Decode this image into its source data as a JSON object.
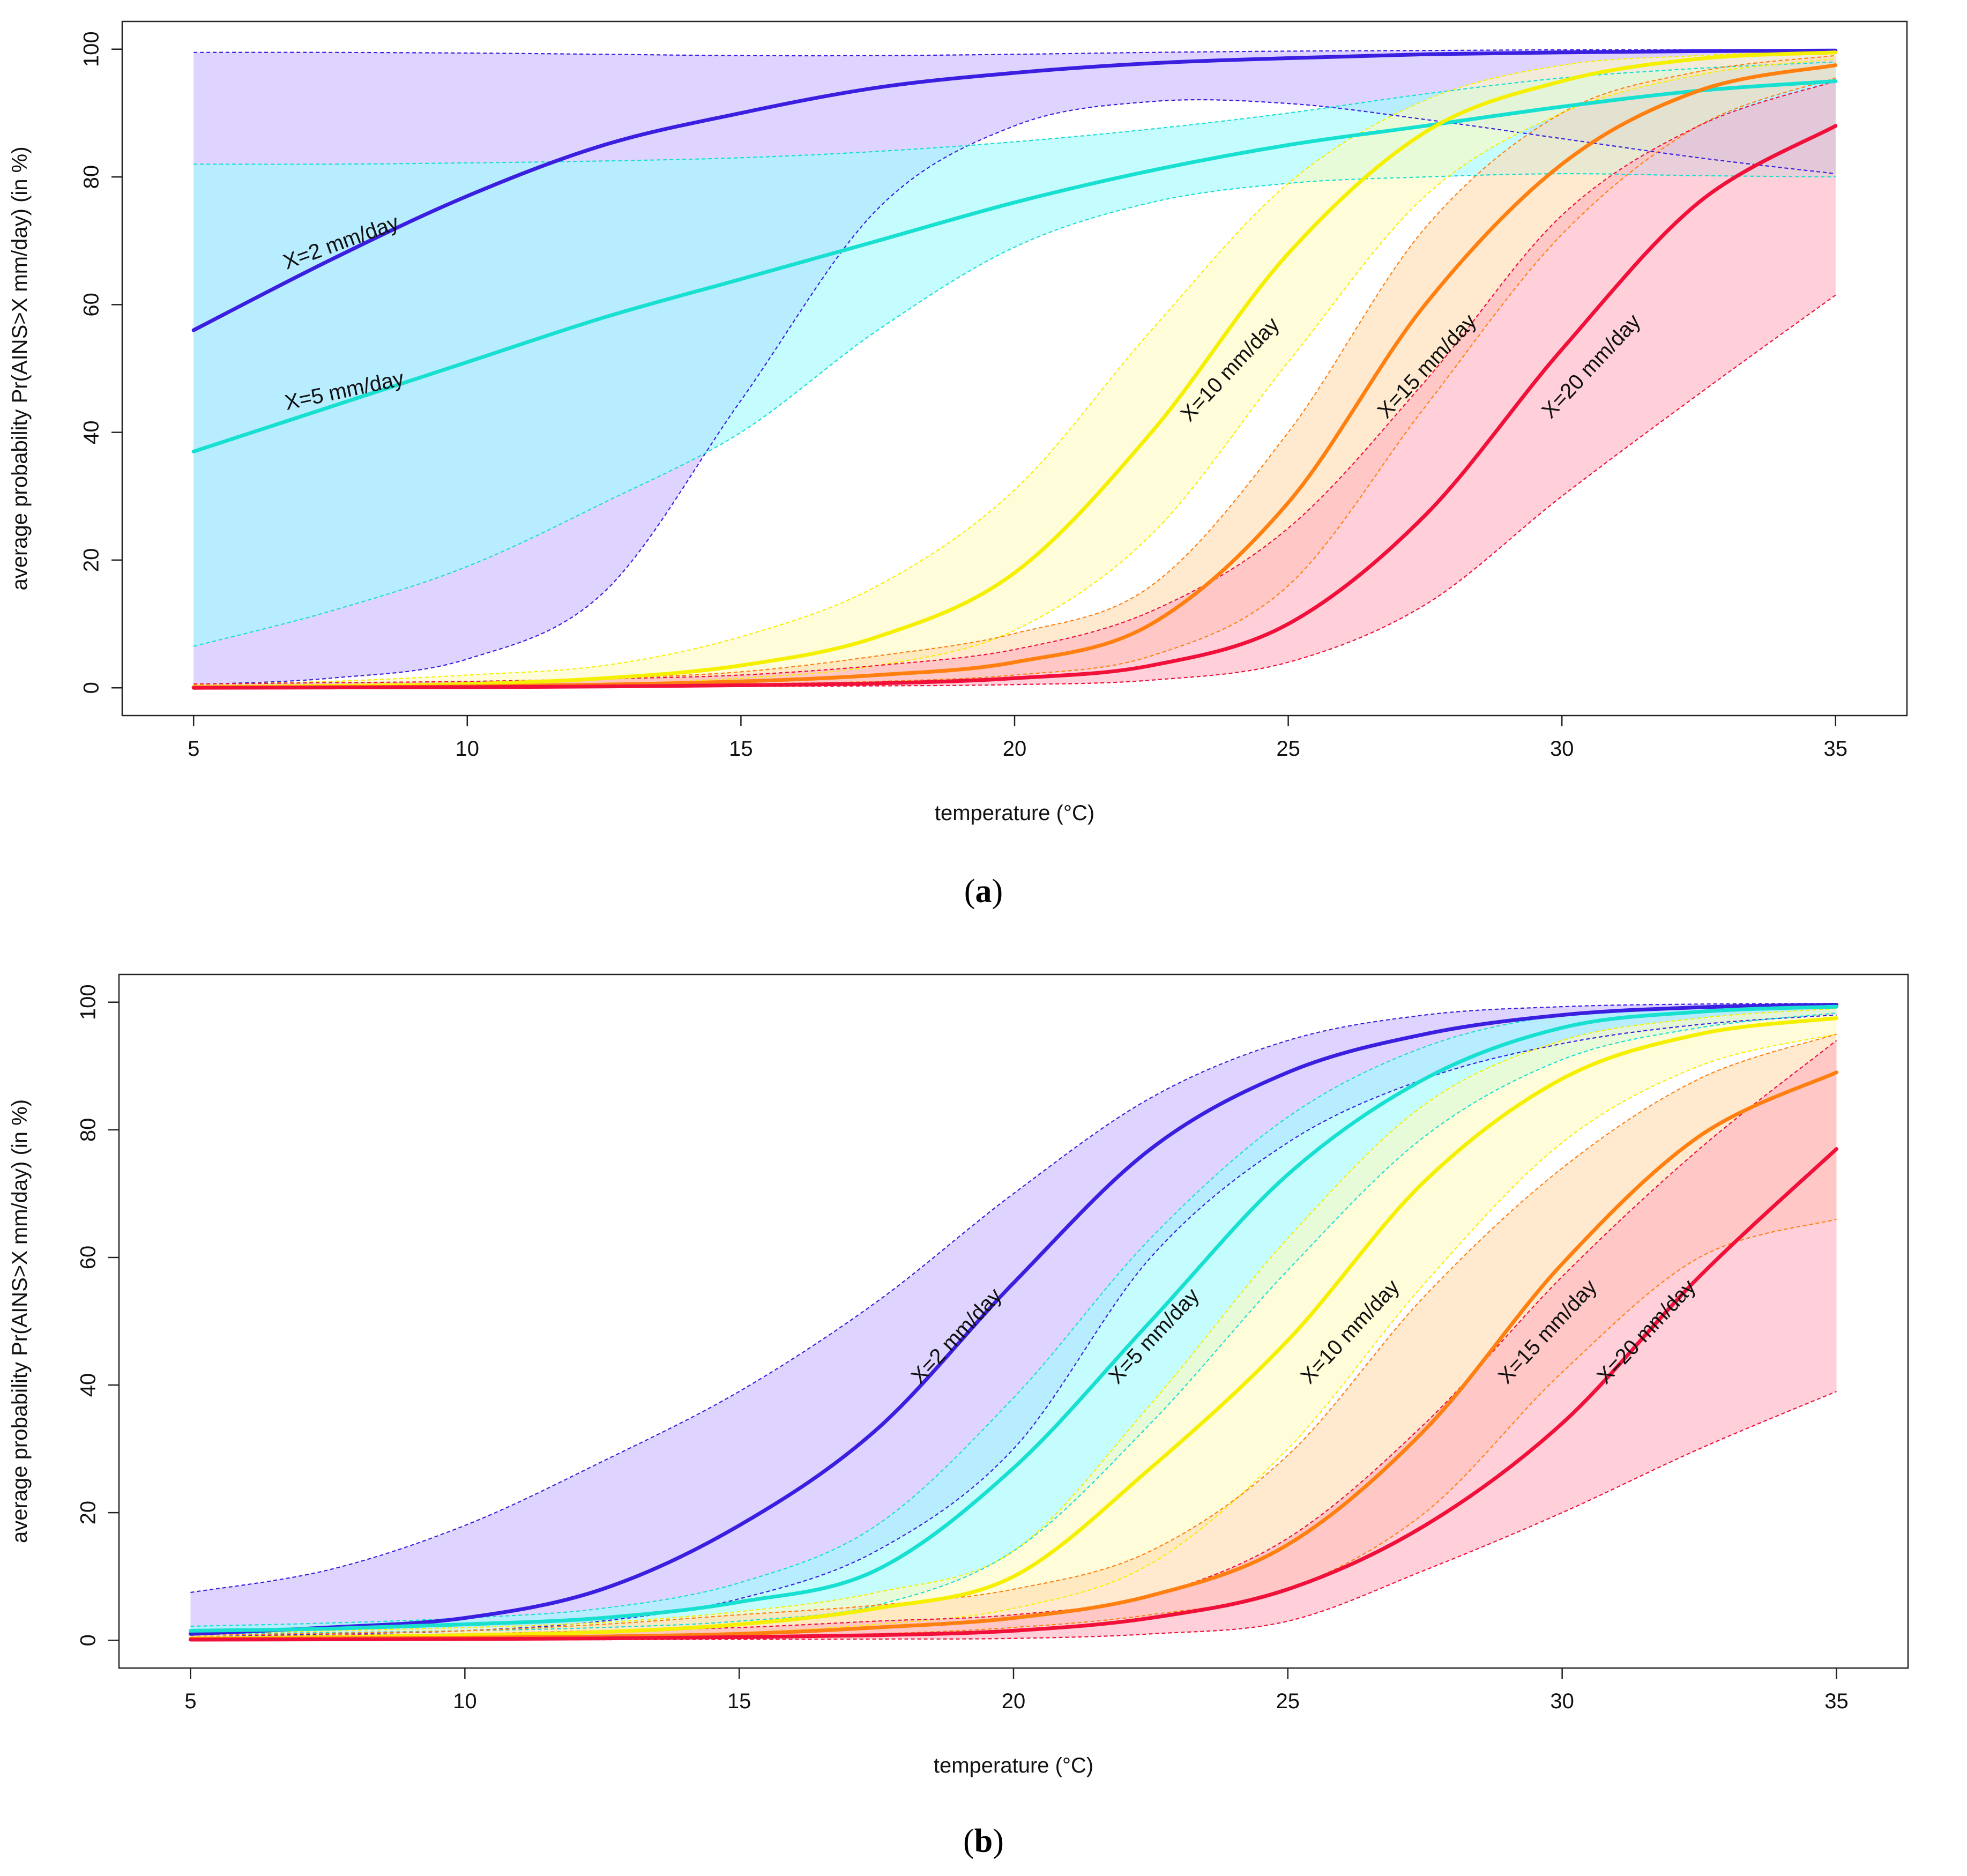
{
  "chart_data": [
    {
      "type": "line",
      "panel_label": "a",
      "xlabel": "temperature (°C)",
      "ylabel": "average probability Pr(AINS>X mm/day) (in %)",
      "xlim": [
        5,
        35
      ],
      "ylim": [
        0,
        100
      ],
      "x_ticks": [
        "5",
        "10",
        "15",
        "20",
        "25",
        "30",
        "35"
      ],
      "y_ticks": [
        "0",
        "20",
        "40",
        "60",
        "80",
        "100"
      ],
      "x": [
        5,
        7.5,
        10,
        12.5,
        15,
        17.5,
        20,
        22.5,
        25,
        27.5,
        30,
        32.5,
        35
      ],
      "series": [
        {
          "name": "X=2 mm/day",
          "color": "#3a1fe0",
          "band_color": "#c9b8ff",
          "values": [
            56,
            67,
            77,
            85,
            90,
            94,
            96.3,
            97.8,
            98.6,
            99.2,
            99.5,
            99.7,
            99.8
          ],
          "lower": [
            0.5,
            1.5,
            4.5,
            15,
            45,
            75,
            88,
            91.8,
            91.5,
            89,
            86,
            83,
            80.5
          ],
          "upper": [
            99.5,
            99.5,
            99.4,
            99.2,
            99,
            99,
            99.2,
            99.5,
            99.7,
            99.8,
            99.9,
            99.9,
            99.9
          ]
        },
        {
          "name": "X=5 mm/day",
          "color": "#18e0d0",
          "band_color": "#9ffbff",
          "values": [
            37,
            44,
            51,
            58,
            64,
            70,
            76,
            81,
            85,
            88,
            91,
            93.5,
            95
          ],
          "lower": [
            6.5,
            12,
            19,
            29,
            40,
            56,
            69,
            76,
            79,
            80,
            80.5,
            80.2,
            80
          ],
          "upper": [
            82,
            82,
            82.2,
            82.5,
            83,
            84,
            85.5,
            87.5,
            90,
            93,
            95.5,
            97,
            98
          ]
        },
        {
          "name": "X=10 mm/day",
          "color": "#f5f000",
          "band_color": "#fffac0",
          "values": [
            0.1,
            0.3,
            0.6,
            1.5,
            3.5,
            8,
            18,
            40,
            68,
            87,
            95,
            98.5,
            99.5
          ],
          "lower": [
            0,
            0.1,
            0.3,
            0.6,
            1.5,
            3.5,
            9,
            24,
            51,
            77,
            90,
            96,
            98.5
          ],
          "upper": [
            0.5,
            1,
            2,
            3.5,
            8,
            16,
            31,
            56,
            79,
            92,
            97.5,
            99,
            99.8
          ]
        },
        {
          "name": "X=15 mm/day",
          "color": "#ff8010",
          "band_color": "#ffdcb0",
          "values": [
            0.05,
            0.1,
            0.2,
            0.5,
            1,
            2,
            4,
            10,
            29,
            60,
            82,
            93.5,
            97.5
          ],
          "lower": [
            0,
            0.05,
            0.1,
            0.3,
            0.6,
            1,
            2,
            5,
            16,
            44,
            71,
            88,
            95.5
          ],
          "upper": [
            0.3,
            0.5,
            0.8,
            1.5,
            2.5,
            5,
            8.5,
            16,
            40,
            72,
            90,
            96.5,
            99
          ]
        },
        {
          "name": "X=20 mm/day",
          "color": "#f0103a",
          "band_color": "#ffb0bf",
          "values": [
            0,
            0.05,
            0.1,
            0.2,
            0.4,
            0.7,
            1.5,
            3.5,
            10,
            27,
            53,
            76,
            88
          ],
          "lower": [
            0,
            0,
            0.05,
            0.1,
            0.2,
            0.3,
            0.5,
            1.2,
            4,
            13,
            30,
            46,
            61.5
          ],
          "upper": [
            0.6,
            0.8,
            1,
            1.4,
            2,
            3.5,
            6,
            12,
            25,
            48,
            74,
            88,
            95
          ]
        }
      ]
    },
    {
      "type": "line",
      "panel_label": "b",
      "xlabel": "temperature (°C)",
      "ylabel": "average probability Pr(AINS>X mm/day) (in %)",
      "xlim": [
        5,
        35
      ],
      "ylim": [
        0,
        100
      ],
      "x_ticks": [
        "5",
        "10",
        "15",
        "20",
        "25",
        "30",
        "35"
      ],
      "y_ticks": [
        "0",
        "20",
        "40",
        "60",
        "80",
        "100"
      ],
      "x": [
        5,
        7.5,
        10,
        12.5,
        15,
        17.5,
        20,
        22.5,
        25,
        27.5,
        30,
        32.5,
        35
      ],
      "series": [
        {
          "name": "X=2 mm/day",
          "color": "#3a1fe0",
          "band_color": "#c9b8ff",
          "values": [
            1,
            2,
            3.5,
            8,
            18,
            33,
            56,
            77,
            89,
            95,
            98,
            99.2,
            99.6
          ],
          "lower": [
            0.5,
            1,
            1.5,
            3,
            6.5,
            14,
            30,
            60,
            78,
            88,
            93.5,
            96.5,
            98
          ],
          "upper": [
            7.5,
            11,
            18,
            28,
            39,
            53,
            70,
            85,
            94,
            98,
            99.3,
            99.7,
            99.8
          ]
        },
        {
          "name": "X=5 mm/day",
          "color": "#18e0d0",
          "band_color": "#9ffbff",
          "values": [
            1.5,
            1.8,
            2.5,
            3.5,
            6,
            11,
            27,
            50,
            73,
            88,
            96,
            98.5,
            99.3
          ],
          "lower": [
            1,
            1.2,
            1.5,
            2,
            3,
            5.5,
            14,
            34,
            58,
            79,
            91,
            96,
            98.3
          ],
          "upper": [
            2.2,
            2.7,
            3.5,
            5,
            9,
            18,
            38,
            63,
            82,
            93,
            98,
            99.2,
            99.6
          ]
        },
        {
          "name": "X=10 mm/day",
          "color": "#f5f000",
          "band_color": "#fffac0",
          "values": [
            0.3,
            0.5,
            0.8,
            1.3,
            2.5,
            5,
            10,
            27,
            47,
            72,
            88,
            95,
            97.5
          ],
          "lower": [
            0.1,
            0.2,
            0.4,
            0.7,
            1.2,
            2.5,
            5,
            12,
            30,
            56,
            78,
            90,
            95
          ],
          "upper": [
            1,
            1.5,
            2,
            2.8,
            4.5,
            7.5,
            14,
            37,
            63,
            84,
            94,
            97.5,
            99
          ]
        },
        {
          "name": "X=15 mm/day",
          "color": "#ff8010",
          "band_color": "#ffdcb0",
          "values": [
            0.2,
            0.3,
            0.4,
            0.6,
            1,
            2,
            3.5,
            7,
            15,
            33,
            59,
            79,
            89
          ],
          "lower": [
            0.1,
            0.1,
            0.2,
            0.3,
            0.5,
            1,
            2,
            4,
            8,
            20,
            42,
            60,
            66
          ],
          "upper": [
            0.8,
            1.1,
            1.5,
            2.5,
            4,
            5.5,
            8,
            14,
            29,
            54,
            74,
            88,
            95
          ]
        },
        {
          "name": "X=20 mm/day",
          "color": "#f0103a",
          "band_color": "#ffb0bf",
          "values": [
            0.1,
            0.15,
            0.2,
            0.3,
            0.5,
            0.8,
            1.5,
            3.5,
            8,
            18,
            34,
            57,
            77
          ],
          "lower": [
            0,
            0,
            0.05,
            0.1,
            0.15,
            0.2,
            0.3,
            1,
            3,
            11,
            20,
            30,
            39
          ],
          "upper": [
            0.5,
            0.8,
            1,
            1.5,
            2,
            3,
            4,
            7,
            16,
            34,
            57,
            77,
            94
          ]
        }
      ]
    }
  ]
}
